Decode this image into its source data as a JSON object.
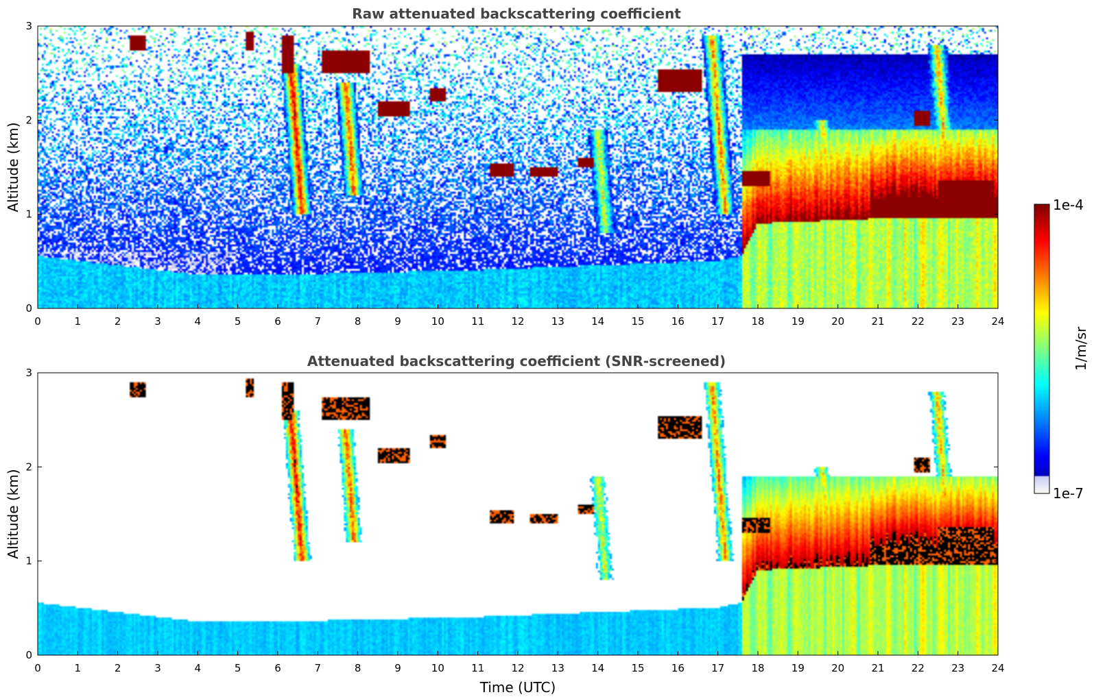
{
  "chart_data": [
    {
      "type": "heatmap",
      "title": "Raw attenuated backscattering coefficient",
      "xlabel": "",
      "ylabel": "Altitude (km)",
      "xlim": [
        0,
        24
      ],
      "ylim": [
        0,
        3
      ],
      "xticks": [
        "0",
        "1",
        "2",
        "3",
        "4",
        "5",
        "6",
        "7",
        "8",
        "9",
        "10",
        "11",
        "12",
        "13",
        "14",
        "15",
        "16",
        "17",
        "18",
        "19",
        "20",
        "21",
        "22",
        "23",
        "24"
      ],
      "yticks": [
        "0",
        "1",
        "2",
        "3"
      ],
      "colormap": "jet",
      "screened": false
    },
    {
      "type": "heatmap",
      "title": "Attenuated backscattering coefficient (SNR-screened)",
      "xlabel": "Time (UTC)",
      "ylabel": "Altitude (km)",
      "xlim": [
        0,
        24
      ],
      "ylim": [
        0,
        3
      ],
      "xticks": [
        "0",
        "1",
        "2",
        "3",
        "4",
        "5",
        "6",
        "7",
        "8",
        "9",
        "10",
        "11",
        "12",
        "13",
        "14",
        "15",
        "16",
        "17",
        "18",
        "19",
        "20",
        "21",
        "22",
        "23",
        "24"
      ],
      "yticks": [
        "0",
        "1",
        "2",
        "3"
      ],
      "colormap": "jet",
      "screened": true
    }
  ],
  "colorbar": {
    "max_label": "1e-4",
    "min_label": "1e-7",
    "label": "1/m/sr",
    "scale": "log"
  },
  "features": {
    "boundary_layer_top_km": [
      [
        0,
        0.55
      ],
      [
        4,
        0.35
      ],
      [
        6,
        0.35
      ],
      [
        11,
        0.4
      ],
      [
        14,
        0.45
      ],
      [
        17,
        0.5
      ],
      [
        17.6,
        0.55
      ],
      [
        18,
        0.9
      ],
      [
        21,
        0.95
      ],
      [
        24,
        0.95
      ]
    ],
    "cloud_layers": [
      {
        "t0": 2.3,
        "t1": 2.7,
        "z0": 2.75,
        "z1": 2.9
      },
      {
        "t0": 5.2,
        "t1": 5.4,
        "z0": 2.75,
        "z1": 2.95
      },
      {
        "t0": 6.1,
        "t1": 6.4,
        "z0": 2.5,
        "z1": 2.9
      },
      {
        "t0": 7.1,
        "t1": 8.3,
        "z0": 2.5,
        "z1": 2.75
      },
      {
        "t0": 8.5,
        "t1": 9.3,
        "z0": 2.05,
        "z1": 2.2
      },
      {
        "t0": 9.8,
        "t1": 10.2,
        "z0": 2.2,
        "z1": 2.35
      },
      {
        "t0": 11.3,
        "t1": 11.9,
        "z0": 1.4,
        "z1": 1.55
      },
      {
        "t0": 12.3,
        "t1": 13.0,
        "z0": 1.4,
        "z1": 1.5
      },
      {
        "t0": 13.5,
        "t1": 13.9,
        "z0": 1.5,
        "z1": 1.6
      },
      {
        "t0": 15.5,
        "t1": 16.6,
        "z0": 2.3,
        "z1": 2.55
      },
      {
        "t0": 17.6,
        "t1": 18.3,
        "z0": 1.3,
        "z1": 1.45
      },
      {
        "t0": 21.9,
        "t1": 22.3,
        "z0": 1.95,
        "z1": 2.1
      },
      {
        "t0": 22.5,
        "t1": 23.9,
        "z0": 1.0,
        "z1": 1.35
      }
    ],
    "plumes": [
      {
        "t": 6.6,
        "z_top": 2.6,
        "z_bottom": 1.0,
        "intensity": 0.8
      },
      {
        "t": 7.9,
        "z_top": 2.4,
        "z_bottom": 1.2,
        "intensity": 0.7
      },
      {
        "t": 14.2,
        "z_top": 1.9,
        "z_bottom": 0.8,
        "intensity": 0.5
      },
      {
        "t": 17.2,
        "z_top": 2.9,
        "z_bottom": 1.0,
        "intensity": 0.65
      },
      {
        "t": 19.8,
        "z_top": 2.0,
        "z_bottom": 1.0,
        "intensity": 0.55
      },
      {
        "t": 22.8,
        "z_top": 2.8,
        "z_bottom": 1.1,
        "intensity": 0.6
      }
    ]
  }
}
